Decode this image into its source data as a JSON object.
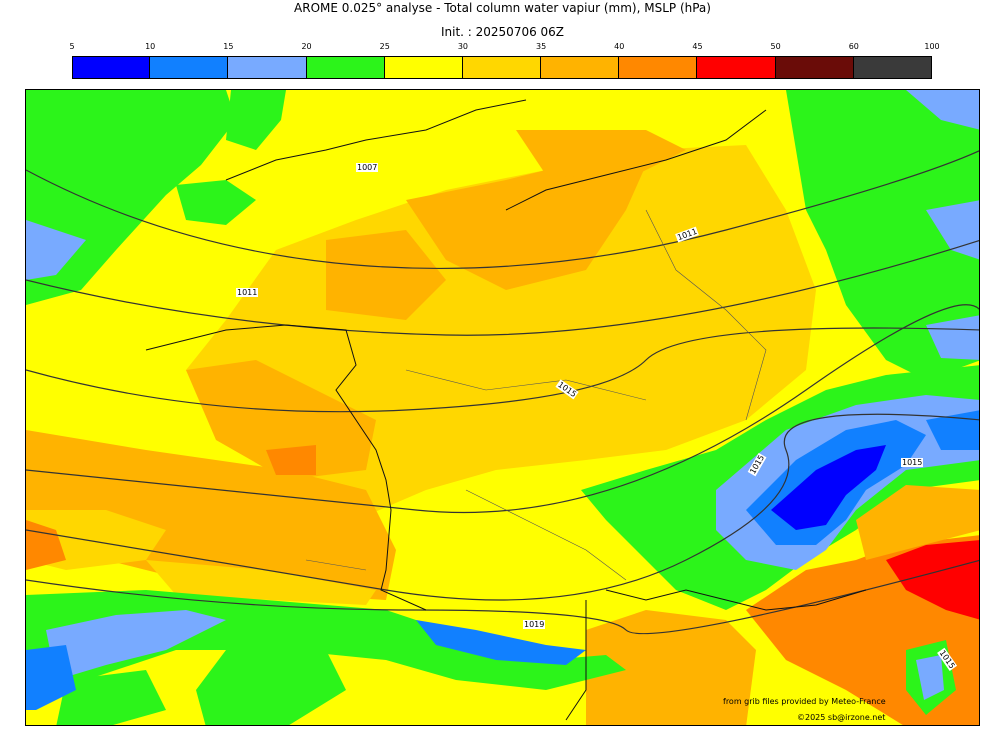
{
  "title": "AROME 0.025° analyse - Total column water vapiur (mm), MSLP (hPa)",
  "subtitle": "Init. : 20250706 06Z",
  "colorbar": {
    "ticks": [
      "5",
      "10",
      "15",
      "20",
      "25",
      "30",
      "35",
      "40",
      "45",
      "50",
      "60",
      "100"
    ],
    "colors": [
      "#0000ff",
      "#1180ff",
      "#78aaff",
      "#2cf41a",
      "#ffff00",
      "#ffd700",
      "#ffb300",
      "#ff8800",
      "#ff0000",
      "#6a0c08",
      "#3a3a3a"
    ]
  },
  "map": {
    "variable": "Total column water vapour (mm)",
    "isobar_labels": [
      "1007",
      "1011",
      "1011",
      "1015",
      "1015",
      "1015",
      "1019",
      "1015"
    ]
  },
  "credits": {
    "source": "from grib files provided by Meteo-France",
    "copyright": "©2025 sb@irzone.net"
  }
}
